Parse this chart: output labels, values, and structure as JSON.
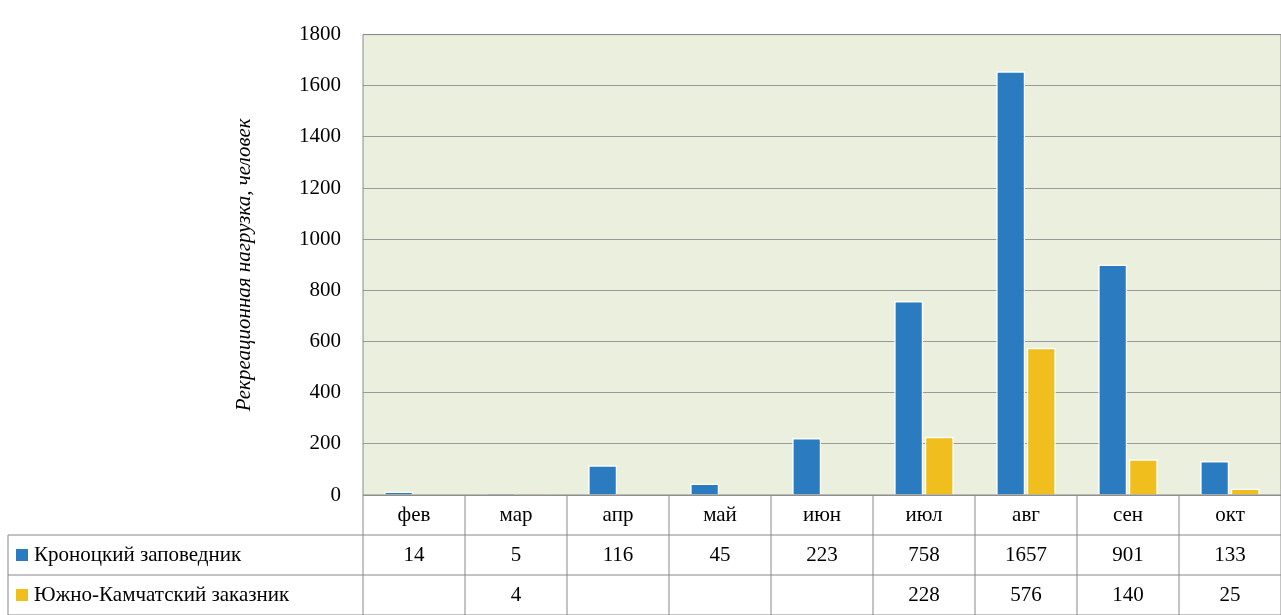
{
  "chart_data": {
    "type": "bar",
    "ylabel": "Рекреационная нагрузка, человек",
    "categories": [
      "фев",
      "мар",
      "апр",
      "май",
      "июн",
      "июл",
      "авг",
      "сен",
      "окт"
    ],
    "series": [
      {
        "name": "Кроноцкий заповедник",
        "color": "#2a7bbf",
        "values": [
          14,
          5,
          116,
          45,
          223,
          758,
          1657,
          901,
          133
        ]
      },
      {
        "name": "Южно-Камчатский заказник",
        "color": "#f0bf1e",
        "values": [
          null,
          4,
          null,
          null,
          null,
          228,
          576,
          140,
          25
        ]
      }
    ],
    "ylim": [
      0,
      1800
    ],
    "yticks": [
      0,
      200,
      400,
      600,
      800,
      1000,
      1200,
      1400,
      1600,
      1800
    ],
    "grid": "y",
    "legend": "bottom",
    "data_labels": true
  }
}
